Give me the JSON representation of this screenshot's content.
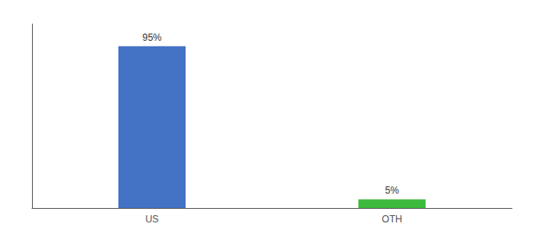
{
  "chart_data": {
    "type": "bar",
    "categories": [
      "US",
      "OTH"
    ],
    "values": [
      95,
      5
    ],
    "value_labels": [
      "95%",
      "5%"
    ],
    "colors": [
      "#4472c4",
      "#3dbb3d"
    ],
    "ylim": [
      0,
      108
    ],
    "data_labels": true,
    "tick_labels": "x",
    "grid": false
  }
}
